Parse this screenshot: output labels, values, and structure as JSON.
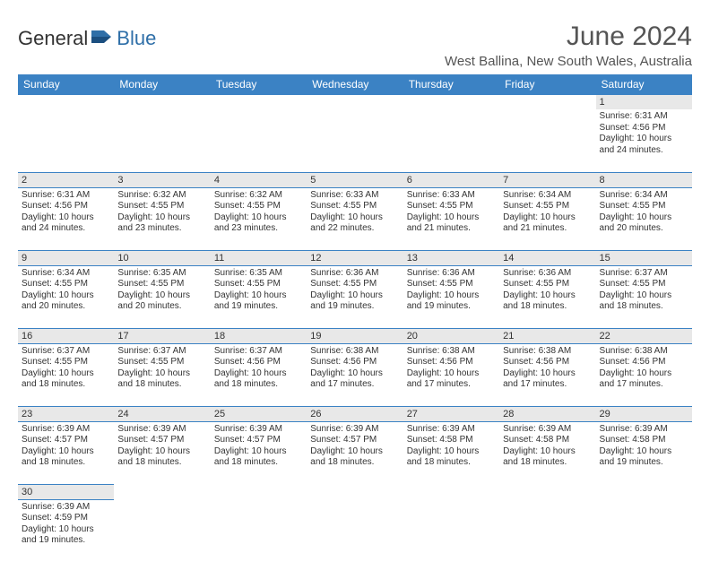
{
  "brand": {
    "general": "General",
    "blue": "Blue"
  },
  "title": "June 2024",
  "location": "West Ballina, New South Wales, Australia",
  "colors": {
    "header_bg": "#3b82c4",
    "header_text": "#ffffff",
    "daynum_bg": "#e8e8e8",
    "text": "#333333",
    "brand_blue": "#2f6fa8"
  },
  "weekdays": [
    "Sunday",
    "Monday",
    "Tuesday",
    "Wednesday",
    "Thursday",
    "Friday",
    "Saturday"
  ],
  "weeks": [
    [
      null,
      null,
      null,
      null,
      null,
      null,
      {
        "n": "1",
        "sr": "Sunrise: 6:31 AM",
        "ss": "Sunset: 4:56 PM",
        "d1": "Daylight: 10 hours",
        "d2": "and 24 minutes."
      }
    ],
    [
      {
        "n": "2",
        "sr": "Sunrise: 6:31 AM",
        "ss": "Sunset: 4:56 PM",
        "d1": "Daylight: 10 hours",
        "d2": "and 24 minutes."
      },
      {
        "n": "3",
        "sr": "Sunrise: 6:32 AM",
        "ss": "Sunset: 4:55 PM",
        "d1": "Daylight: 10 hours",
        "d2": "and 23 minutes."
      },
      {
        "n": "4",
        "sr": "Sunrise: 6:32 AM",
        "ss": "Sunset: 4:55 PM",
        "d1": "Daylight: 10 hours",
        "d2": "and 23 minutes."
      },
      {
        "n": "5",
        "sr": "Sunrise: 6:33 AM",
        "ss": "Sunset: 4:55 PM",
        "d1": "Daylight: 10 hours",
        "d2": "and 22 minutes."
      },
      {
        "n": "6",
        "sr": "Sunrise: 6:33 AM",
        "ss": "Sunset: 4:55 PM",
        "d1": "Daylight: 10 hours",
        "d2": "and 21 minutes."
      },
      {
        "n": "7",
        "sr": "Sunrise: 6:34 AM",
        "ss": "Sunset: 4:55 PM",
        "d1": "Daylight: 10 hours",
        "d2": "and 21 minutes."
      },
      {
        "n": "8",
        "sr": "Sunrise: 6:34 AM",
        "ss": "Sunset: 4:55 PM",
        "d1": "Daylight: 10 hours",
        "d2": "and 20 minutes."
      }
    ],
    [
      {
        "n": "9",
        "sr": "Sunrise: 6:34 AM",
        "ss": "Sunset: 4:55 PM",
        "d1": "Daylight: 10 hours",
        "d2": "and 20 minutes."
      },
      {
        "n": "10",
        "sr": "Sunrise: 6:35 AM",
        "ss": "Sunset: 4:55 PM",
        "d1": "Daylight: 10 hours",
        "d2": "and 20 minutes."
      },
      {
        "n": "11",
        "sr": "Sunrise: 6:35 AM",
        "ss": "Sunset: 4:55 PM",
        "d1": "Daylight: 10 hours",
        "d2": "and 19 minutes."
      },
      {
        "n": "12",
        "sr": "Sunrise: 6:36 AM",
        "ss": "Sunset: 4:55 PM",
        "d1": "Daylight: 10 hours",
        "d2": "and 19 minutes."
      },
      {
        "n": "13",
        "sr": "Sunrise: 6:36 AM",
        "ss": "Sunset: 4:55 PM",
        "d1": "Daylight: 10 hours",
        "d2": "and 19 minutes."
      },
      {
        "n": "14",
        "sr": "Sunrise: 6:36 AM",
        "ss": "Sunset: 4:55 PM",
        "d1": "Daylight: 10 hours",
        "d2": "and 18 minutes."
      },
      {
        "n": "15",
        "sr": "Sunrise: 6:37 AM",
        "ss": "Sunset: 4:55 PM",
        "d1": "Daylight: 10 hours",
        "d2": "and 18 minutes."
      }
    ],
    [
      {
        "n": "16",
        "sr": "Sunrise: 6:37 AM",
        "ss": "Sunset: 4:55 PM",
        "d1": "Daylight: 10 hours",
        "d2": "and 18 minutes."
      },
      {
        "n": "17",
        "sr": "Sunrise: 6:37 AM",
        "ss": "Sunset: 4:55 PM",
        "d1": "Daylight: 10 hours",
        "d2": "and 18 minutes."
      },
      {
        "n": "18",
        "sr": "Sunrise: 6:37 AM",
        "ss": "Sunset: 4:56 PM",
        "d1": "Daylight: 10 hours",
        "d2": "and 18 minutes."
      },
      {
        "n": "19",
        "sr": "Sunrise: 6:38 AM",
        "ss": "Sunset: 4:56 PM",
        "d1": "Daylight: 10 hours",
        "d2": "and 17 minutes."
      },
      {
        "n": "20",
        "sr": "Sunrise: 6:38 AM",
        "ss": "Sunset: 4:56 PM",
        "d1": "Daylight: 10 hours",
        "d2": "and 17 minutes."
      },
      {
        "n": "21",
        "sr": "Sunrise: 6:38 AM",
        "ss": "Sunset: 4:56 PM",
        "d1": "Daylight: 10 hours",
        "d2": "and 17 minutes."
      },
      {
        "n": "22",
        "sr": "Sunrise: 6:38 AM",
        "ss": "Sunset: 4:56 PM",
        "d1": "Daylight: 10 hours",
        "d2": "and 17 minutes."
      }
    ],
    [
      {
        "n": "23",
        "sr": "Sunrise: 6:39 AM",
        "ss": "Sunset: 4:57 PM",
        "d1": "Daylight: 10 hours",
        "d2": "and 18 minutes."
      },
      {
        "n": "24",
        "sr": "Sunrise: 6:39 AM",
        "ss": "Sunset: 4:57 PM",
        "d1": "Daylight: 10 hours",
        "d2": "and 18 minutes."
      },
      {
        "n": "25",
        "sr": "Sunrise: 6:39 AM",
        "ss": "Sunset: 4:57 PM",
        "d1": "Daylight: 10 hours",
        "d2": "and 18 minutes."
      },
      {
        "n": "26",
        "sr": "Sunrise: 6:39 AM",
        "ss": "Sunset: 4:57 PM",
        "d1": "Daylight: 10 hours",
        "d2": "and 18 minutes."
      },
      {
        "n": "27",
        "sr": "Sunrise: 6:39 AM",
        "ss": "Sunset: 4:58 PM",
        "d1": "Daylight: 10 hours",
        "d2": "and 18 minutes."
      },
      {
        "n": "28",
        "sr": "Sunrise: 6:39 AM",
        "ss": "Sunset: 4:58 PM",
        "d1": "Daylight: 10 hours",
        "d2": "and 18 minutes."
      },
      {
        "n": "29",
        "sr": "Sunrise: 6:39 AM",
        "ss": "Sunset: 4:58 PM",
        "d1": "Daylight: 10 hours",
        "d2": "and 19 minutes."
      }
    ],
    [
      {
        "n": "30",
        "sr": "Sunrise: 6:39 AM",
        "ss": "Sunset: 4:59 PM",
        "d1": "Daylight: 10 hours",
        "d2": "and 19 minutes."
      },
      null,
      null,
      null,
      null,
      null,
      null
    ]
  ]
}
